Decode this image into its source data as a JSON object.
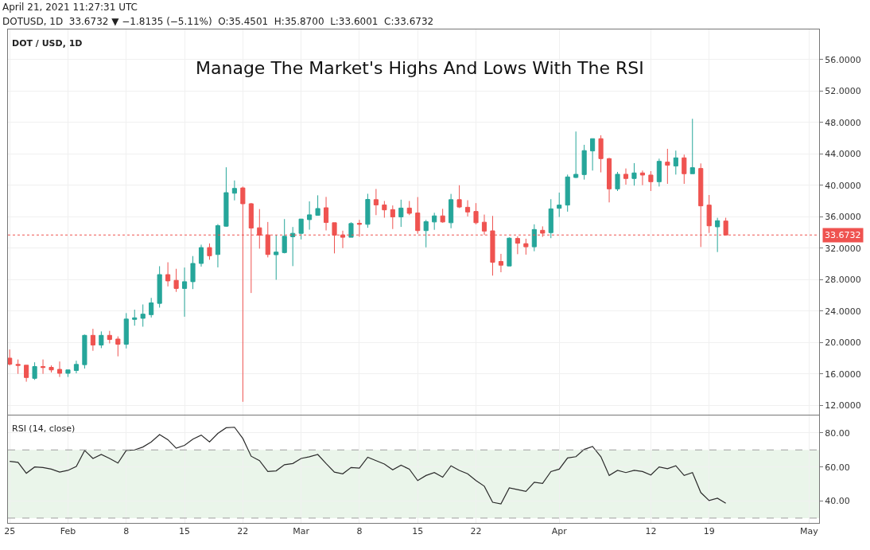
{
  "chart_data": [
    {
      "type": "candlestick",
      "title": "Manage The Market's Highs And Lows With The RSI",
      "subtitle": "April 21, 2021 11:27:31 UTC",
      "annotations": [
        "DOTUSD, 1D  33.6732 ▼ −1.8135 (−5.11%)  O:35.4501  H:35.8700  L:33.6001  C:33.6732",
        "DOT / USD, 1D"
      ],
      "x": [
        "2021-01-25",
        "2021-01-26",
        "2021-01-27",
        "2021-01-28",
        "2021-01-29",
        "2021-01-30",
        "2021-01-31",
        "2021-02-01",
        "2021-02-02",
        "2021-02-03",
        "2021-02-04",
        "2021-02-05",
        "2021-02-06",
        "2021-02-07",
        "2021-02-08",
        "2021-02-09",
        "2021-02-10",
        "2021-02-11",
        "2021-02-12",
        "2021-02-13",
        "2021-02-14",
        "2021-02-15",
        "2021-02-16",
        "2021-02-17",
        "2021-02-18",
        "2021-02-19",
        "2021-02-20",
        "2021-02-21",
        "2021-02-22",
        "2021-02-23",
        "2021-02-24",
        "2021-02-25",
        "2021-02-26",
        "2021-02-27",
        "2021-02-28",
        "2021-03-01",
        "2021-03-02",
        "2021-03-03",
        "2021-03-04",
        "2021-03-05",
        "2021-03-06",
        "2021-03-07",
        "2021-03-08",
        "2021-03-09",
        "2021-03-10",
        "2021-03-11",
        "2021-03-12",
        "2021-03-13",
        "2021-03-14",
        "2021-03-15",
        "2021-03-16",
        "2021-03-17",
        "2021-03-18",
        "2021-03-19",
        "2021-03-20",
        "2021-03-21",
        "2021-03-22",
        "2021-03-23",
        "2021-03-24",
        "2021-03-25",
        "2021-03-26",
        "2021-03-27",
        "2021-03-28",
        "2021-03-29",
        "2021-03-30",
        "2021-03-31",
        "2021-04-01",
        "2021-04-02",
        "2021-04-03",
        "2021-04-04",
        "2021-04-05",
        "2021-04-06",
        "2021-04-07",
        "2021-04-08",
        "2021-04-09",
        "2021-04-10",
        "2021-04-11",
        "2021-04-12",
        "2021-04-13",
        "2021-04-14",
        "2021-04-15",
        "2021-04-16",
        "2021-04-17",
        "2021-04-18",
        "2021-04-19",
        "2021-04-20",
        "2021-04-21"
      ],
      "ohlc": [
        [
          18.0,
          19.1,
          17.07,
          17.23
        ],
        [
          17.2,
          17.83,
          16.0,
          17.07
        ],
        [
          17.1,
          17.1,
          15.0,
          15.53
        ],
        [
          15.43,
          17.47,
          15.23,
          16.93
        ],
        [
          16.93,
          17.83,
          16.0,
          16.8
        ],
        [
          16.83,
          17.07,
          16.17,
          16.5
        ],
        [
          16.57,
          17.57,
          15.6,
          16.07
        ],
        [
          16.07,
          16.5,
          15.6,
          16.5
        ],
        [
          16.43,
          17.67,
          16.07,
          17.2
        ],
        [
          17.17,
          21.0,
          16.67,
          20.9
        ],
        [
          20.9,
          21.73,
          18.93,
          19.67
        ],
        [
          19.67,
          21.4,
          19.27,
          20.9
        ],
        [
          20.9,
          21.47,
          19.87,
          20.37
        ],
        [
          20.43,
          20.77,
          18.23,
          19.77
        ],
        [
          19.77,
          23.73,
          19.23,
          22.97
        ],
        [
          22.93,
          24.17,
          22.13,
          23.13
        ],
        [
          23.07,
          24.83,
          22.0,
          23.6
        ],
        [
          23.53,
          25.67,
          23.17,
          25.03
        ],
        [
          24.97,
          29.7,
          24.43,
          28.63
        ],
        [
          28.63,
          30.2,
          27.13,
          27.83
        ],
        [
          27.9,
          29.37,
          26.43,
          26.87
        ],
        [
          26.87,
          29.53,
          23.27,
          27.73
        ],
        [
          27.73,
          30.99,
          26.79,
          30.05
        ],
        [
          30.05,
          32.44,
          29.65,
          32.07
        ],
        [
          32.07,
          32.6,
          30.52,
          31.03
        ],
        [
          31.19,
          35.06,
          29.55,
          34.86
        ],
        [
          34.79,
          42.29,
          34.72,
          39.06
        ],
        [
          38.99,
          40.61,
          38.08,
          39.6
        ],
        [
          39.66,
          39.83,
          12.44,
          37.65
        ],
        [
          37.65,
          37.75,
          26.29,
          34.55
        ],
        [
          34.59,
          36.97,
          31.93,
          33.65
        ],
        [
          33.68,
          35.33,
          30.82,
          31.19
        ],
        [
          31.16,
          33.68,
          27.97,
          31.5
        ],
        [
          31.43,
          35.7,
          31.33,
          33.51
        ],
        [
          33.45,
          34.69,
          29.71,
          33.88
        ],
        [
          33.88,
          35.7,
          33.11,
          35.7
        ],
        [
          35.63,
          37.95,
          34.35,
          36.24
        ],
        [
          36.17,
          38.72,
          36.13,
          37.04
        ],
        [
          37.14,
          38.52,
          34.25,
          35.26
        ],
        [
          35.23,
          35.23,
          31.33,
          33.65
        ],
        [
          33.68,
          34.22,
          32.0,
          33.38
        ],
        [
          33.38,
          35.29,
          33.38,
          35.13
        ],
        [
          35.16,
          35.6,
          33.45,
          35.03
        ],
        [
          35.03,
          38.92,
          34.59,
          38.2
        ],
        [
          38.17,
          39.53,
          36.2,
          37.5
        ],
        [
          37.5,
          38.0,
          35.87,
          36.87
        ],
        [
          36.9,
          37.43,
          34.43,
          35.97
        ],
        [
          35.97,
          38.17,
          34.7,
          37.1
        ],
        [
          37.1,
          38.0,
          36.2,
          36.43
        ],
        [
          36.47,
          38.5,
          33.83,
          34.23
        ],
        [
          34.23,
          35.6,
          32.1,
          35.37
        ],
        [
          35.33,
          36.5,
          34.33,
          36.1
        ],
        [
          36.1,
          37.0,
          35.23,
          35.33
        ],
        [
          35.23,
          38.9,
          34.53,
          38.17
        ],
        [
          38.17,
          40.0,
          37.1,
          37.23
        ],
        [
          37.2,
          38.1,
          36.03,
          36.6
        ],
        [
          36.67,
          37.73,
          35.03,
          35.23
        ],
        [
          35.3,
          36.27,
          33.67,
          34.17
        ],
        [
          34.2,
          36.1,
          28.5,
          30.2
        ],
        [
          30.3,
          31.27,
          28.93,
          29.83
        ],
        [
          29.73,
          33.37,
          29.73,
          33.27
        ],
        [
          33.23,
          33.5,
          31.23,
          32.63
        ],
        [
          32.57,
          33.2,
          31.17,
          32.17
        ],
        [
          32.17,
          35.03,
          31.6,
          34.37
        ],
        [
          34.27,
          34.77,
          33.43,
          33.9
        ],
        [
          33.97,
          38.23,
          33.27,
          37.0
        ],
        [
          37.07,
          39.07,
          35.96,
          37.48
        ],
        [
          37.48,
          41.36,
          36.64,
          41.06
        ],
        [
          40.99,
          46.84,
          40.93,
          41.39
        ],
        [
          41.36,
          45.15,
          40.72,
          44.41
        ],
        [
          44.37,
          45.93,
          41.87,
          45.93
        ],
        [
          45.93,
          46.36,
          41.64,
          43.39
        ],
        [
          43.39,
          43.49,
          37.82,
          39.54
        ],
        [
          39.54,
          41.7,
          39.27,
          41.4
        ],
        [
          41.4,
          42.14,
          40.08,
          40.86
        ],
        [
          40.86,
          42.82,
          39.95,
          41.57
        ],
        [
          41.57,
          41.87,
          40.01,
          41.3
        ],
        [
          41.3,
          41.8,
          39.27,
          40.45
        ],
        [
          40.45,
          43.39,
          39.84,
          43.05
        ],
        [
          42.95,
          44.64,
          40.18,
          42.55
        ],
        [
          42.45,
          44.41,
          41.36,
          43.49
        ],
        [
          43.49,
          43.9,
          40.18,
          41.47
        ],
        [
          41.47,
          48.46,
          41.47,
          42.24
        ],
        [
          42.14,
          42.78,
          32.14,
          37.38
        ],
        [
          37.48,
          38.76,
          33.93,
          34.84
        ],
        [
          34.71,
          35.86,
          31.5,
          35.49
        ],
        [
          35.4501,
          35.87,
          33.6001,
          33.6732
        ]
      ],
      "colors": [
        "#ef5350",
        "#ef5350",
        "#ef5350",
        "#26a69a",
        "#ef5350",
        "#ef5350",
        "#ef5350",
        "#26a69a",
        "#26a69a",
        "#26a69a",
        "#ef5350",
        "#26a69a",
        "#ef5350",
        "#ef5350",
        "#26a69a",
        "#26a69a",
        "#26a69a",
        "#26a69a",
        "#26a69a",
        "#ef5350",
        "#ef5350",
        "#26a69a",
        "#26a69a",
        "#26a69a",
        "#ef5350",
        "#26a69a",
        "#26a69a",
        "#26a69a",
        "#ef5350",
        "#ef5350",
        "#ef5350",
        "#ef5350",
        "#26a69a",
        "#26a69a",
        "#26a69a",
        "#26a69a",
        "#26a69a",
        "#26a69a",
        "#ef5350",
        "#ef5350",
        "#ef5350",
        "#26a69a",
        "#ef5350",
        "#26a69a",
        "#ef5350",
        "#ef5350",
        "#ef5350",
        "#26a69a",
        "#ef5350",
        "#ef5350",
        "#26a69a",
        "#26a69a",
        "#ef5350",
        "#26a69a",
        "#ef5350",
        "#ef5350",
        "#ef5350",
        "#ef5350",
        "#ef5350",
        "#ef5350",
        "#26a69a",
        "#ef5350",
        "#ef5350",
        "#26a69a",
        "#ef5350",
        "#26a69a",
        "#26a69a",
        "#26a69a",
        "#26a69a",
        "#26a69a",
        "#26a69a",
        "#ef5350",
        "#ef5350",
        "#26a69a",
        "#ef5350",
        "#26a69a",
        "#ef5350",
        "#ef5350",
        "#26a69a",
        "#ef5350",
        "#26a69a",
        "#ef5350",
        "#26a69a",
        "#ef5350",
        "#ef5350",
        "#26a69a",
        "#ef5350"
      ],
      "xlim": [
        "2021-01-24T19:00",
        "2021-05-02T05:00"
      ],
      "xticks": [
        {
          "value": "2021-01-25",
          "label": null
        },
        {
          "value": "2021-02-01",
          "label": null
        },
        {
          "value": "2021-02-08",
          "label": null
        },
        {
          "value": "2021-02-15",
          "label": null
        },
        {
          "value": "2021-02-22",
          "label": null
        },
        {
          "value": "2021-03-01",
          "label": null
        },
        {
          "value": "2021-03-08",
          "label": null
        },
        {
          "value": "2021-03-15",
          "label": null
        },
        {
          "value": "2021-03-22",
          "label": null
        },
        {
          "value": "2021-04-01",
          "label": null
        },
        {
          "value": "2021-04-12",
          "label": null
        },
        {
          "value": "2021-04-19",
          "label": null
        },
        {
          "value": "2021-05-01",
          "label": null
        }
      ],
      "ylim": [
        10.8,
        59.8
      ],
      "yticks": [
        {
          "value": 12,
          "label": "12.0000"
        },
        {
          "value": 16,
          "label": "16.0000"
        },
        {
          "value": 20,
          "label": "20.0000"
        },
        {
          "value": 24,
          "label": "24.0000"
        },
        {
          "value": 28,
          "label": "28.0000"
        },
        {
          "value": 32,
          "label": "32.0000"
        },
        {
          "value": 36,
          "label": "36.0000"
        },
        {
          "value": 40,
          "label": "40.0000"
        },
        {
          "value": 44,
          "label": "44.0000"
        },
        {
          "value": 48,
          "label": "48.0000"
        },
        {
          "value": 52,
          "label": "52.0000"
        },
        {
          "value": 56,
          "label": "56.0000"
        }
      ],
      "ref_lines": [
        {
          "axis": "y",
          "value": 33.6732,
          "label": "33.6732",
          "color": "#ef5350",
          "line_style": "dotted"
        }
      ],
      "grid": true,
      "tick_labels": "y"
    },
    {
      "type": "line",
      "annotations": [
        "RSI (14, close)"
      ],
      "x": [
        "2021-01-25",
        "2021-01-26",
        "2021-01-27",
        "2021-01-28",
        "2021-01-29",
        "2021-01-30",
        "2021-01-31",
        "2021-02-01",
        "2021-02-02",
        "2021-02-03",
        "2021-02-04",
        "2021-02-05",
        "2021-02-06",
        "2021-02-07",
        "2021-02-08",
        "2021-02-09",
        "2021-02-10",
        "2021-02-11",
        "2021-02-12",
        "2021-02-13",
        "2021-02-14",
        "2021-02-15",
        "2021-02-16",
        "2021-02-17",
        "2021-02-18",
        "2021-02-19",
        "2021-02-20",
        "2021-02-21",
        "2021-02-22",
        "2021-02-23",
        "2021-02-24",
        "2021-02-25",
        "2021-02-26",
        "2021-02-27",
        "2021-02-28",
        "2021-03-01",
        "2021-03-02",
        "2021-03-03",
        "2021-03-04",
        "2021-03-05",
        "2021-03-06",
        "2021-03-07",
        "2021-03-08",
        "2021-03-09",
        "2021-03-10",
        "2021-03-11",
        "2021-03-12",
        "2021-03-13",
        "2021-03-14",
        "2021-03-15",
        "2021-03-16",
        "2021-03-17",
        "2021-03-18",
        "2021-03-19",
        "2021-03-20",
        "2021-03-21",
        "2021-03-22",
        "2021-03-23",
        "2021-03-24",
        "2021-03-25",
        "2021-03-26",
        "2021-03-27",
        "2021-03-28",
        "2021-03-29",
        "2021-03-30",
        "2021-03-31",
        "2021-04-01",
        "2021-04-02",
        "2021-04-03",
        "2021-04-04",
        "2021-04-05",
        "2021-04-06",
        "2021-04-07",
        "2021-04-08",
        "2021-04-09",
        "2021-04-10",
        "2021-04-11",
        "2021-04-12",
        "2021-04-13",
        "2021-04-14",
        "2021-04-15",
        "2021-04-16",
        "2021-04-17",
        "2021-04-18",
        "2021-04-19",
        "2021-04-20",
        "2021-04-21"
      ],
      "series": [
        {
          "color": "#2b2b2b",
          "values": [
            63.3,
            62.7,
            56.3,
            60,
            59.7,
            58.7,
            57,
            58,
            60.3,
            69.7,
            65,
            67.3,
            65,
            62.3,
            69.7,
            70,
            71.7,
            74.7,
            79,
            76,
            71,
            72.7,
            76.3,
            78.7,
            74.7,
            79.7,
            83,
            83.3,
            76.7,
            66.3,
            63.7,
            57.3,
            57.7,
            61.3,
            62,
            65,
            66,
            67.3,
            62,
            57,
            56,
            59.7,
            59.3,
            65.7,
            63.7,
            61.7,
            58.3,
            61,
            58.7,
            52,
            55,
            56.7,
            54,
            60.7,
            58,
            56,
            52,
            48.7,
            39.3,
            38.3,
            47.7,
            46.7,
            45.7,
            51,
            50.3,
            57.3,
            58.7,
            65.3,
            66,
            70.3,
            72,
            66,
            55,
            58,
            56.7,
            58,
            57.3,
            55.3,
            60,
            59,
            60.7,
            55,
            56.7,
            45,
            40.3,
            41.7,
            38.7
          ]
        }
      ],
      "xlim": [
        "2021-01-24T19:00",
        "2021-05-02T05:00"
      ],
      "xticks": [
        {
          "value": "2021-01-25",
          "label": "25"
        },
        {
          "value": "2021-02-01",
          "label": "Feb"
        },
        {
          "value": "2021-02-08",
          "label": "8"
        },
        {
          "value": "2021-02-15",
          "label": "15"
        },
        {
          "value": "2021-02-22",
          "label": "22"
        },
        {
          "value": "2021-03-01",
          "label": "Mar"
        },
        {
          "value": "2021-03-08",
          "label": "8"
        },
        {
          "value": "2021-03-15",
          "label": "15"
        },
        {
          "value": "2021-03-22",
          "label": "22"
        },
        {
          "value": "2021-04-01",
          "label": "Apr"
        },
        {
          "value": "2021-04-12",
          "label": "12"
        },
        {
          "value": "2021-04-19",
          "label": "19"
        },
        {
          "value": "2021-05-01",
          "label": "May"
        }
      ],
      "ylim": [
        27.1,
        90
      ],
      "yticks": [
        {
          "value": 40,
          "label": "40.00"
        },
        {
          "value": 60,
          "label": "60.00"
        },
        {
          "value": 80,
          "label": "80.00"
        }
      ],
      "ref_lines": [
        {
          "axis": "y",
          "value": 70,
          "color": "#9e9e9e",
          "line_style": "dashed"
        },
        {
          "axis": "y",
          "value": 30,
          "color": "#9e9e9e",
          "line_style": "dashed"
        }
      ],
      "bands": [
        {
          "axis": "y",
          "from": 30,
          "to": 70,
          "color": "#eaf5ea"
        }
      ],
      "grid": true
    }
  ]
}
